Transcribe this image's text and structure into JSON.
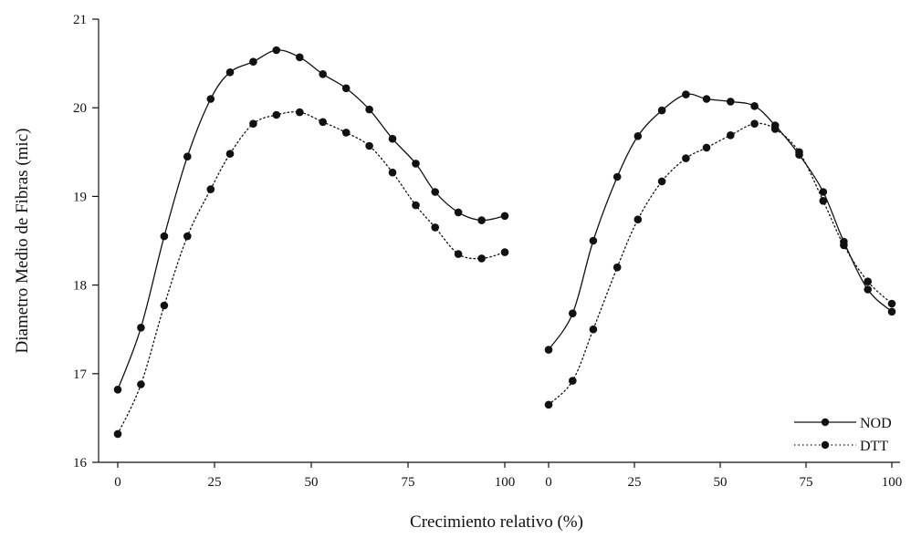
{
  "chart_data": {
    "type": "line",
    "ylabel": "Diametro Medio de Fibras (mic)",
    "xlabel": "Crecimiento relativo (%)",
    "ylim": [
      16,
      21
    ],
    "yticks": [
      "16",
      "17",
      "18",
      "19",
      "20",
      "21"
    ],
    "grid": false,
    "legend_position": "bottom-right",
    "panels": [
      {
        "xlim": [
          0,
          100
        ],
        "xticks": [
          "0",
          "25",
          "50",
          "75",
          "100"
        ],
        "series": [
          {
            "name": "NOD",
            "style": "solid",
            "x": [
              0,
              6,
              12,
              18,
              24,
              29,
              35,
              41,
              47,
              53,
              59,
              65,
              71,
              77,
              82,
              88,
              94,
              100
            ],
            "y": [
              16.82,
              17.52,
              18.55,
              19.45,
              20.1,
              20.4,
              20.52,
              20.65,
              20.57,
              20.38,
              20.22,
              19.98,
              19.65,
              19.37,
              19.05,
              18.82,
              18.73,
              18.78
            ]
          },
          {
            "name": "DTT",
            "style": "dotted",
            "x": [
              0,
              6,
              12,
              18,
              24,
              29,
              35,
              41,
              47,
              53,
              59,
              65,
              71,
              77,
              82,
              88,
              94,
              100
            ],
            "y": [
              16.32,
              16.88,
              17.77,
              18.55,
              19.08,
              19.48,
              19.82,
              19.92,
              19.95,
              19.84,
              19.72,
              19.57,
              19.27,
              18.9,
              18.65,
              18.35,
              18.3,
              18.37
            ]
          }
        ]
      },
      {
        "xlim": [
          0,
          100
        ],
        "xticks": [
          "0",
          "25",
          "50",
          "75",
          "100"
        ],
        "series": [
          {
            "name": "NOD",
            "style": "solid",
            "x": [
              0,
              7,
              13,
              20,
              26,
              33,
              40,
              46,
              53,
              60,
              66,
              73,
              80,
              86,
              93,
              100
            ],
            "y": [
              17.27,
              17.68,
              18.5,
              19.22,
              19.68,
              19.97,
              20.15,
              20.1,
              20.07,
              20.02,
              19.8,
              19.47,
              19.05,
              18.49,
              17.95,
              17.7
            ]
          },
          {
            "name": "DTT",
            "style": "dotted",
            "x": [
              0,
              7,
              13,
              20,
              26,
              33,
              40,
              46,
              53,
              60,
              66,
              73,
              80,
              86,
              93,
              100
            ],
            "y": [
              16.65,
              16.92,
              17.5,
              18.2,
              18.74,
              19.17,
              19.43,
              19.55,
              19.69,
              19.82,
              19.76,
              19.5,
              18.95,
              18.45,
              18.04,
              17.79
            ]
          }
        ]
      }
    ]
  },
  "colors": {
    "line": "#111111",
    "background": "#ffffff"
  }
}
